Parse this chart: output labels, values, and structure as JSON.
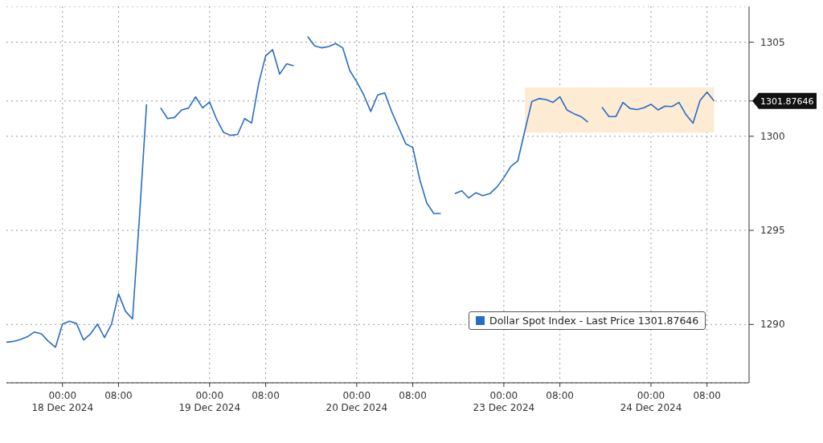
{
  "chart_data": {
    "type": "line",
    "categories": [
      null,
      null,
      null,
      null,
      null,
      null,
      null,
      null,
      "00:00\n18 Dec 2024",
      null,
      null,
      null,
      null,
      null,
      null,
      null,
      "08:00",
      null,
      null,
      null,
      null,
      null,
      null,
      null,
      null,
      null,
      null,
      null,
      null,
      "00:00\n19 Dec 2024",
      null,
      null,
      null,
      null,
      null,
      null,
      null,
      "08:00",
      null,
      null,
      null,
      null,
      null,
      null,
      null,
      null,
      null,
      null,
      null,
      null,
      "00:00\n20 Dec 2024",
      null,
      null,
      null,
      null,
      null,
      null,
      null,
      "08:00",
      null,
      null,
      null,
      null,
      null,
      null,
      null,
      null,
      null,
      null,
      null,
      null,
      "00:00\n23 Dec 2024",
      null,
      null,
      null,
      null,
      null,
      null,
      null,
      "08:00",
      null,
      null,
      null,
      null,
      null,
      null,
      null,
      null,
      null,
      null,
      null,
      null,
      "00:00\n24 Dec 2024",
      null,
      null,
      null,
      null,
      null,
      null,
      null,
      "08:00",
      null,
      null,
      null,
      null,
      null,
      null
    ],
    "series": [
      {
        "name": "Dollar Spot Index - Last Price 1301.87646",
        "color": "#2a6cc4",
        "values": [
          1289.06,
          1289.1,
          1289.2,
          1289.35,
          1289.6,
          1289.5,
          1289.1,
          1288.79,
          1290.02,
          1290.17,
          1290.05,
          1289.18,
          1289.5,
          1290.02,
          1289.3,
          1290.02,
          1291.63,
          1290.7,
          1290.29,
          1295.77,
          1301.7,
          null,
          1301.51,
          1300.94,
          1301.0,
          1301.4,
          1301.5,
          1302.09,
          1301.51,
          1301.82,
          1300.9,
          1300.2,
          1300.05,
          1300.1,
          1300.94,
          1300.7,
          1302.8,
          1304.27,
          1304.6,
          1303.3,
          1303.85,
          1303.74,
          null,
          1305.3,
          1304.8,
          1304.7,
          1304.77,
          1304.93,
          1304.7,
          1303.5,
          1302.9,
          1302.2,
          1301.32,
          1302.2,
          1302.3,
          1301.3,
          1300.45,
          1299.6,
          1299.4,
          1297.7,
          1296.45,
          1295.9,
          1295.9,
          null,
          1296.95,
          1297.1,
          1296.72,
          1297.0,
          1296.85,
          1296.95,
          1297.3,
          1297.8,
          1298.4,
          1298.7,
          1300.3,
          1301.85,
          1302.0,
          1301.95,
          1301.8,
          1302.1,
          1301.4,
          1301.2,
          1301.05,
          1300.75,
          null,
          1301.55,
          1301.05,
          1301.05,
          1301.8,
          1301.48,
          1301.42,
          1301.52,
          1301.7,
          1301.4,
          1301.6,
          1301.58,
          1301.8,
          1301.15,
          1300.7,
          1301.9,
          1302.35,
          1301.88,
          null,
          null,
          null,
          null,
          null
        ]
      }
    ],
    "ylim": [
      1286.9,
      1306.9
    ],
    "yticks": [
      1290,
      1295,
      1300,
      1301.87646,
      1305
    ],
    "grid": true,
    "legend": "bottom right",
    "marker": "none",
    "line_style": "solid"
  }
}
